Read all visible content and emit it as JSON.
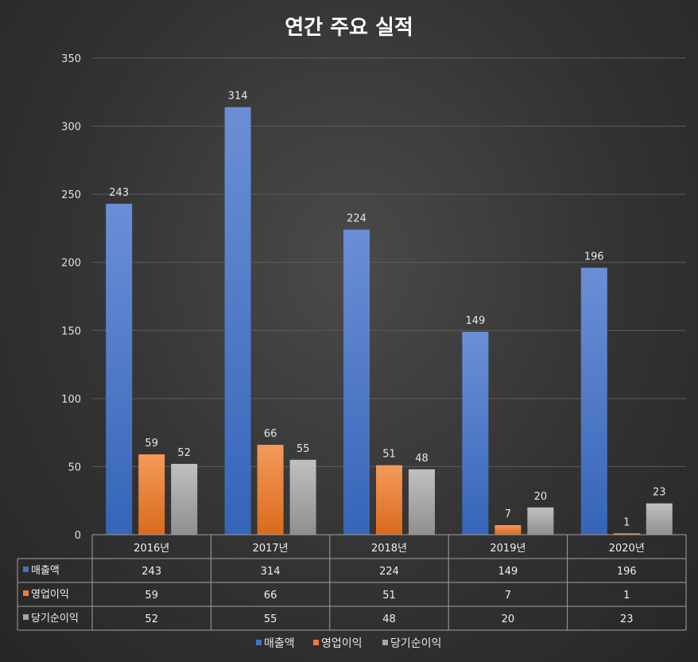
{
  "chart_data": {
    "type": "bar",
    "title": "연간 주요 실적",
    "categories": [
      "2016년",
      "2017년",
      "2018년",
      "2019년",
      "2020년"
    ],
    "series": [
      {
        "name": "매출액",
        "values": [
          243,
          314,
          224,
          149,
          196
        ],
        "color": "#4472C4"
      },
      {
        "name": "영업이익",
        "values": [
          59,
          66,
          51,
          7,
          1
        ],
        "color": "#ED7D31"
      },
      {
        "name": "당기순이익",
        "values": [
          52,
          55,
          48,
          20,
          23
        ],
        "color": "#A5A5A5"
      }
    ],
    "yticks": [
      0,
      50,
      100,
      150,
      200,
      250,
      300,
      350
    ],
    "ylim": [
      0,
      350
    ],
    "grid": true,
    "legend_position": "bottom",
    "data_table": true
  }
}
